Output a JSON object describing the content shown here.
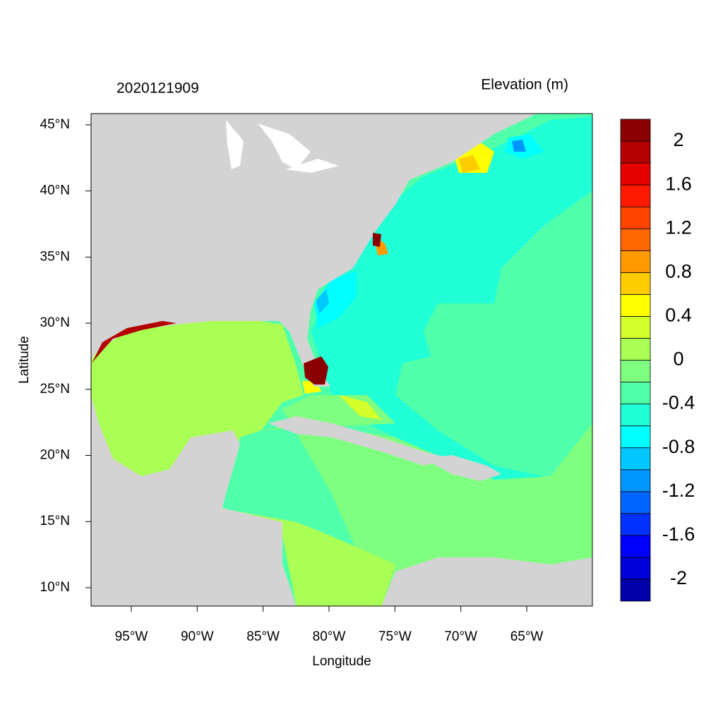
{
  "chart_data": {
    "type": "map",
    "title_left": "2020121909",
    "title_right": "Elevation (m)",
    "xlabel": "Longitude",
    "ylabel": "Latitude",
    "xlim": [
      -98.05,
      -60.02
    ],
    "ylim": [
      8.61,
      45.85
    ],
    "xticks": [
      {
        "value": -95,
        "label": "95°W"
      },
      {
        "value": -90,
        "label": "90°W"
      },
      {
        "value": -85,
        "label": "85°W"
      },
      {
        "value": -80,
        "label": "80°W"
      },
      {
        "value": -75,
        "label": "75°W"
      },
      {
        "value": -70,
        "label": "70°W"
      },
      {
        "value": -65,
        "label": "65°W"
      }
    ],
    "yticks": [
      {
        "value": 10,
        "label": "10°N"
      },
      {
        "value": 15,
        "label": "15°N"
      },
      {
        "value": 20,
        "label": "20°N"
      },
      {
        "value": 25,
        "label": "25°N"
      },
      {
        "value": 30,
        "label": "30°N"
      },
      {
        "value": 35,
        "label": "35°N"
      },
      {
        "value": 40,
        "label": "40°N"
      },
      {
        "value": 45,
        "label": "45°N"
      }
    ],
    "colorbar": {
      "levels": [
        -2,
        -1.8,
        -1.6,
        -1.4,
        -1.2,
        -1,
        -0.8,
        -0.6,
        -0.4,
        -0.2,
        0,
        0.2,
        0.4,
        0.6,
        0.8,
        1,
        1.2,
        1.4,
        1.6,
        1.8,
        2
      ],
      "colors": [
        "#0000aa",
        "#0000d8",
        "#0000ff",
        "#0032ff",
        "#0064ff",
        "#0096ff",
        "#00c8ff",
        "#00ffff",
        "#20ffd6",
        "#50ffaa",
        "#7fff7f",
        "#aaff55",
        "#d4ff2b",
        "#ffff00",
        "#ffcc00",
        "#ff9900",
        "#ff6600",
        "#ff4400",
        "#ff1a00",
        "#e60000",
        "#b40000",
        "#8b0000"
      ],
      "ticks": [
        -2,
        -1.6,
        -1.2,
        -0.8,
        -0.4,
        0,
        0.4,
        0.8,
        1.2,
        1.6,
        2
      ]
    }
  }
}
